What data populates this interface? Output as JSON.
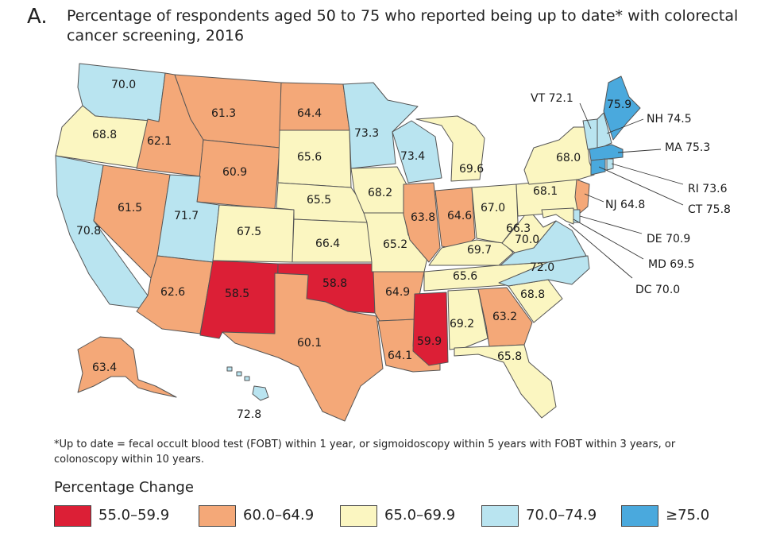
{
  "panel_letter": "A.",
  "title": "Percentage of respondents aged 50 to 75 who reported being up to date* with colorectal cancer screening, 2016",
  "footnote": "*Up to date =  fecal occult blood test (FOBT) within 1 year, or sigmoidoscopy within 5 years with FOBT within 3 years, or colonoscopy within 10 years.",
  "legend": {
    "title": "Percentage Change",
    "items": [
      {
        "label": "55.0–59.9",
        "color": "#dc1f36"
      },
      {
        "label": "60.0–64.9",
        "color": "#f4a878"
      },
      {
        "label": "65.0–69.9",
        "color": "#fbf6c1"
      },
      {
        "label": "70.0–74.9",
        "color": "#b9e4f0"
      },
      {
        "label": "≥75.0",
        "color": "#4aa9dd"
      }
    ]
  },
  "states": {
    "WA": "70.0",
    "OR": "68.8",
    "CA": "70.8",
    "NV": "61.5",
    "ID": "62.1",
    "MT": "61.3",
    "WY": "60.9",
    "UT": "71.7",
    "AZ": "62.6",
    "CO": "67.5",
    "NM": "58.5",
    "ND": "64.4",
    "SD": "65.6",
    "NE": "65.5",
    "KS": "66.4",
    "OK": "58.8",
    "TX": "60.1",
    "MN": "73.3",
    "IA": "68.2",
    "MO": "65.2",
    "AR": "64.9",
    "LA": "64.1",
    "WI": "73.4",
    "IL": "63.8",
    "MI": "69.6",
    "IN": "64.6",
    "OH": "67.0",
    "KY": "69.7",
    "TN": "65.6",
    "MS": "59.9",
    "AL": "69.2",
    "GA": "63.2",
    "FL": "65.8",
    "SC": "68.8",
    "NC": "72.0",
    "VA": "70.0",
    "WV": "66.3",
    "PA": "68.1",
    "NY": "68.0",
    "ME": "75.9",
    "AK": "63.4",
    "HI": "72.8"
  },
  "callouts": {
    "VT": "VT 72.1",
    "NH": "NH 74.5",
    "MA": "MA 75.3",
    "RI": "RI 73.6",
    "CT": "CT 75.8",
    "NJ": "NJ 64.8",
    "DE": "DE 70.9",
    "MD": "MD 69.5",
    "DC": "DC 70.0"
  }
}
